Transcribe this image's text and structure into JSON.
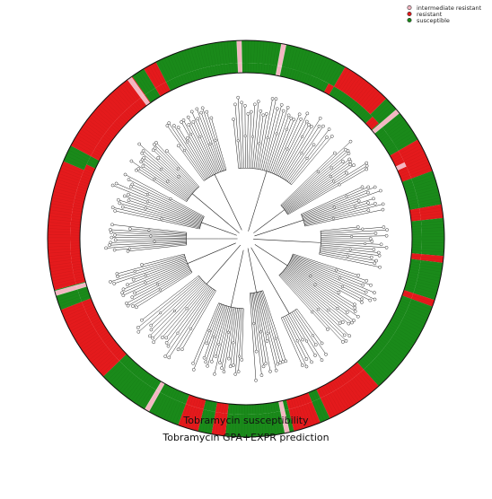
{
  "chart_data": {
    "type": "circular-phylogenetic-tree",
    "legend": {
      "position": "top-right",
      "entries": [
        {
          "label": "intermediate resistant",
          "color": "#f4b6c2"
        },
        {
          "label": "resistant",
          "color": "#e41a1c"
        },
        {
          "label": "susceptible",
          "color": "#1a8a1a"
        }
      ]
    },
    "rings": [
      {
        "name": "Tobramycin susceptibility",
        "segments": [
          {
            "start": -2,
            "end": 28,
            "status": "susceptible"
          },
          {
            "start": 28,
            "end": 30,
            "status": "resistant"
          },
          {
            "start": 30,
            "end": 46,
            "status": "susceptible"
          },
          {
            "start": 46,
            "end": 49,
            "status": "resistant"
          },
          {
            "start": 49,
            "end": 60,
            "status": "susceptible"
          },
          {
            "start": 60,
            "end": 70,
            "status": "resistant"
          },
          {
            "start": 70,
            "end": 80,
            "status": "susceptible"
          },
          {
            "start": 80,
            "end": 84,
            "status": "resistant"
          },
          {
            "start": 84,
            "end": 95,
            "status": "susceptible"
          },
          {
            "start": 95,
            "end": 97,
            "status": "resistant"
          },
          {
            "start": 97,
            "end": 108,
            "status": "susceptible"
          },
          {
            "start": 108,
            "end": 110,
            "status": "resistant"
          },
          {
            "start": 110,
            "end": 138,
            "status": "susceptible"
          },
          {
            "start": 138,
            "end": 155,
            "status": "resistant"
          },
          {
            "start": 155,
            "end": 158,
            "status": "susceptible"
          },
          {
            "start": 158,
            "end": 166,
            "status": "resistant"
          },
          {
            "start": 166,
            "end": 186,
            "status": "susceptible"
          },
          {
            "start": 186,
            "end": 190,
            "status": "resistant"
          },
          {
            "start": 190,
            "end": 194,
            "status": "susceptible"
          },
          {
            "start": 194,
            "end": 200,
            "status": "resistant"
          },
          {
            "start": 200,
            "end": 226,
            "status": "susceptible"
          },
          {
            "start": 226,
            "end": 249,
            "status": "resistant"
          },
          {
            "start": 249,
            "end": 255,
            "status": "susceptible"
          },
          {
            "start": 255,
            "end": 295,
            "status": "resistant"
          },
          {
            "start": 295,
            "end": 298,
            "status": "susceptible"
          },
          {
            "start": 298,
            "end": 325,
            "status": "resistant"
          },
          {
            "start": 325,
            "end": 329,
            "status": "susceptible"
          },
          {
            "start": 329,
            "end": 333,
            "status": "resistant"
          },
          {
            "start": 333,
            "end": 358,
            "status": "susceptible"
          }
        ],
        "intermediate_ticks": [
          11,
          50,
          65,
          168,
          210,
          254,
          324,
          358
        ]
      },
      {
        "name": "Tobramycin GPA+EXPR prediction",
        "segments": [
          {
            "start": -2,
            "end": 30,
            "status": "susceptible"
          },
          {
            "start": 30,
            "end": 45,
            "status": "resistant"
          },
          {
            "start": 45,
            "end": 60,
            "status": "susceptible"
          },
          {
            "start": 60,
            "end": 70,
            "status": "resistant"
          },
          {
            "start": 70,
            "end": 80,
            "status": "susceptible"
          },
          {
            "start": 80,
            "end": 84,
            "status": "resistant"
          },
          {
            "start": 84,
            "end": 95,
            "status": "susceptible"
          },
          {
            "start": 95,
            "end": 97,
            "status": "resistant"
          },
          {
            "start": 97,
            "end": 108,
            "status": "susceptible"
          },
          {
            "start": 108,
            "end": 110,
            "status": "resistant"
          },
          {
            "start": 110,
            "end": 138,
            "status": "susceptible"
          },
          {
            "start": 138,
            "end": 155,
            "status": "resistant"
          },
          {
            "start": 155,
            "end": 158,
            "status": "susceptible"
          },
          {
            "start": 158,
            "end": 166,
            "status": "resistant"
          },
          {
            "start": 166,
            "end": 186,
            "status": "susceptible"
          },
          {
            "start": 186,
            "end": 190,
            "status": "resistant"
          },
          {
            "start": 190,
            "end": 194,
            "status": "susceptible"
          },
          {
            "start": 194,
            "end": 200,
            "status": "resistant"
          },
          {
            "start": 200,
            "end": 226,
            "status": "susceptible"
          },
          {
            "start": 226,
            "end": 249,
            "status": "resistant"
          },
          {
            "start": 249,
            "end": 255,
            "status": "susceptible"
          },
          {
            "start": 255,
            "end": 293,
            "status": "resistant"
          },
          {
            "start": 293,
            "end": 298,
            "status": "susceptible"
          },
          {
            "start": 298,
            "end": 325,
            "status": "resistant"
          },
          {
            "start": 325,
            "end": 329,
            "status": "susceptible"
          },
          {
            "start": 329,
            "end": 333,
            "status": "resistant"
          },
          {
            "start": 333,
            "end": 358,
            "status": "susceptible"
          }
        ],
        "intermediate_ticks": [
          11,
          50,
          168,
          210,
          254,
          324,
          358
        ]
      }
    ],
    "tree": {
      "clades": [
        {
          "start": -8,
          "end": 42,
          "tips": 34
        },
        {
          "start": 44,
          "end": 62,
          "tips": 14
        },
        {
          "start": 64,
          "end": 80,
          "tips": 12
        },
        {
          "start": 82,
          "end": 104,
          "tips": 16
        },
        {
          "start": 106,
          "end": 140,
          "tips": 26
        },
        {
          "start": 142,
          "end": 158,
          "tips": 10
        },
        {
          "start": 160,
          "end": 178,
          "tips": 12
        },
        {
          "start": 180,
          "end": 205,
          "tips": 18
        },
        {
          "start": 208,
          "end": 234,
          "tips": 16
        },
        {
          "start": 236,
          "end": 258,
          "tips": 16
        },
        {
          "start": 262,
          "end": 278,
          "tips": 12
        },
        {
          "start": 280,
          "end": 300,
          "tips": 14
        },
        {
          "start": 300,
          "end": 320,
          "tips": 16
        },
        {
          "start": 322,
          "end": 346,
          "tips": 18
        }
      ]
    }
  }
}
